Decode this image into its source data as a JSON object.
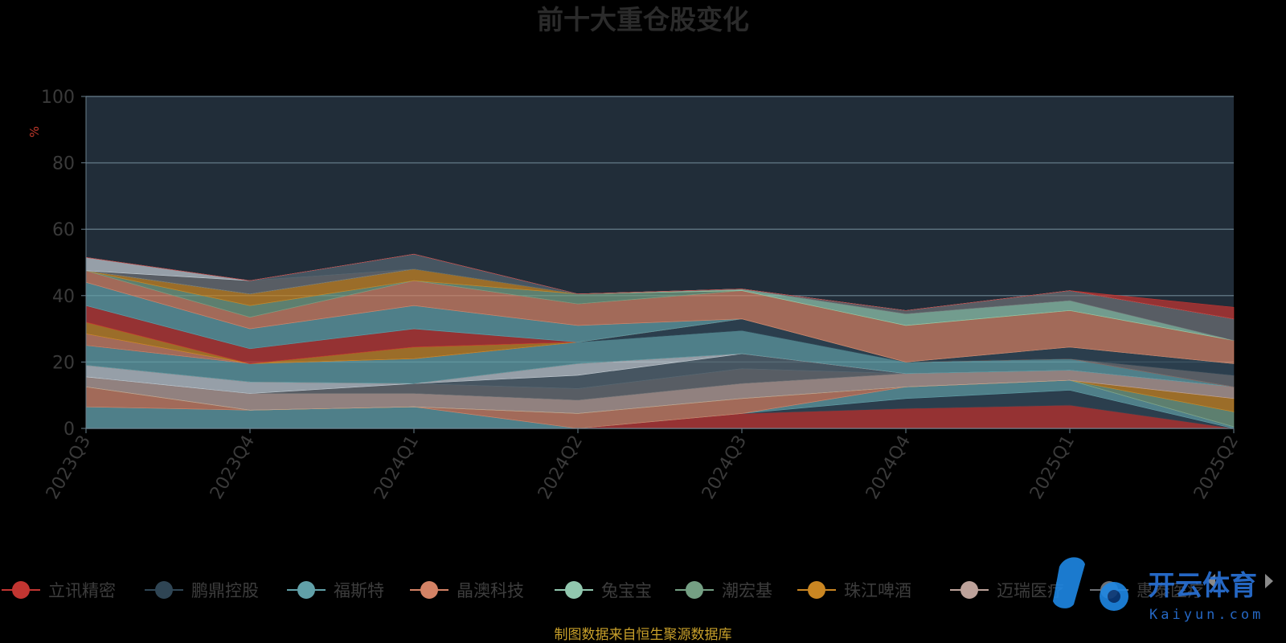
{
  "chart_data": {
    "type": "area",
    "title": "前十大重仓股变化",
    "ylabel": "%",
    "ylim": [
      0,
      100
    ],
    "yticks": [
      "0",
      "20",
      "40",
      "60",
      "80",
      "100"
    ],
    "categories": [
      "2023Q3",
      "2023Q4",
      "2024Q1",
      "2024Q2",
      "2024Q3",
      "2024Q4",
      "2025Q1",
      "2025Q2"
    ],
    "grid": true,
    "legend_position": "bottom",
    "series": [
      {
        "name": "立讯精密",
        "color": "#c23531",
        "values": [
          0,
          0,
          0,
          0,
          4.5,
          6,
          7,
          0
        ]
      },
      {
        "name": "鹏鼎控股",
        "color": "#2f4554",
        "values": [
          0,
          0,
          0,
          0,
          0,
          3,
          4.5,
          0
        ]
      },
      {
        "name": "福斯特",
        "color": "#61a0a8",
        "values": [
          6.5,
          5.5,
          6.5,
          0,
          0,
          3.5,
          3,
          0.5
        ]
      },
      {
        "name": "晶澳科技",
        "color": "#d48265",
        "values": [
          6,
          0,
          0,
          4.5,
          4.5,
          0,
          0,
          0
        ]
      },
      {
        "name": "兔宝宝",
        "color": "#91c7ae",
        "values": [
          0,
          0,
          0,
          0,
          0,
          0,
          0,
          0
        ]
      },
      {
        "name": "潮宏基",
        "color": "#749f83",
        "values": [
          0,
          0,
          0,
          0,
          0,
          0,
          0,
          4.5
        ]
      },
      {
        "name": "珠江啤酒",
        "color": "#ca8622",
        "values": [
          0,
          0,
          0,
          0,
          0,
          0,
          0,
          4
        ]
      },
      {
        "name": "迈瑞医疗",
        "color": "#bda29a",
        "values": [
          3,
          5,
          4,
          4,
          4.5,
          4,
          3,
          3.5
        ]
      },
      {
        "name": "惠泰医疗",
        "color": "#6e7074",
        "values": [
          0,
          0,
          3,
          3.5,
          4.5,
          0,
          0,
          0
        ]
      },
      {
        "name": "",
        "color": "#546570",
        "values": [
          0,
          0,
          0,
          4,
          4.5,
          0,
          0,
          0
        ]
      },
      {
        "name": "",
        "color": "#c4ccd3",
        "values": [
          3.5,
          3.5,
          0,
          3.5,
          0,
          0,
          0,
          0
        ]
      },
      {
        "name": "",
        "color": "#c23531",
        "values": [
          0,
          0,
          0,
          0,
          0,
          0,
          0,
          0
        ]
      },
      {
        "name": "",
        "color": "#61a0a8",
        "values": [
          6,
          5.5,
          7.5,
          6.5,
          7,
          3.5,
          3.5,
          0
        ]
      },
      {
        "name": "",
        "color": "#2f4554",
        "values": [
          0,
          0,
          0,
          0,
          3.5,
          0,
          0,
          0
        ]
      },
      {
        "name": "",
        "color": "#d48265",
        "values": [
          3.5,
          0,
          0,
          0,
          0,
          0,
          0,
          0
        ]
      },
      {
        "name": "",
        "color": "#ca8622",
        "values": [
          3.5,
          0,
          3.5,
          0,
          0,
          0,
          0,
          0
        ]
      },
      {
        "name": "",
        "color": "#c23531",
        "values": [
          5,
          4.5,
          5.5,
          0,
          0,
          0,
          0,
          0
        ]
      },
      {
        "name": "",
        "color": "#6e7074",
        "values": [
          0,
          0,
          0,
          0,
          0,
          0,
          0,
          3.5
        ]
      },
      {
        "name": "",
        "color": "#2f4554",
        "values": [
          0,
          0,
          0,
          0,
          0,
          0,
          3.5,
          3.5
        ]
      },
      {
        "name": "",
        "color": "#61a0a8",
        "values": [
          7,
          6,
          7,
          5,
          0,
          0,
          0,
          0
        ]
      },
      {
        "name": "",
        "color": "#d48265",
        "values": [
          3.5,
          3.5,
          7.5,
          6.5,
          8.5,
          11,
          11,
          7
        ]
      },
      {
        "name": "",
        "color": "#749f83",
        "values": [
          0,
          3.5,
          0,
          3,
          0,
          0,
          0,
          0
        ]
      },
      {
        "name": "",
        "color": "#ca8622",
        "values": [
          0,
          3.5,
          3.5,
          0,
          0,
          0,
          0,
          0
        ]
      },
      {
        "name": "",
        "color": "#91c7ae",
        "values": [
          0,
          0,
          0,
          0,
          0.5,
          3.5,
          3,
          0
        ]
      },
      {
        "name": "",
        "color": "#6e7074",
        "values": [
          0,
          4,
          0,
          0,
          0,
          1,
          3,
          6.5
        ]
      },
      {
        "name": "",
        "color": "#546570",
        "values": [
          0,
          0,
          4.5,
          0,
          0,
          0,
          0,
          0
        ]
      },
      {
        "name": "",
        "color": "#c4ccd3",
        "values": [
          4,
          0,
          0,
          0,
          0,
          0,
          0,
          0
        ]
      },
      {
        "name": "",
        "color": "#c23531",
        "values": [
          0,
          0,
          0,
          0,
          0,
          0,
          0,
          3.5
        ]
      }
    ]
  },
  "legend_items": [
    {
      "label": "立讯精密",
      "color": "#c23531"
    },
    {
      "label": "鹏鼎控股",
      "color": "#2f4554"
    },
    {
      "label": "福斯特",
      "color": "#61a0a8"
    },
    {
      "label": "晶澳科技",
      "color": "#d48265"
    },
    {
      "label": "兔宝宝",
      "color": "#91c7ae"
    },
    {
      "label": "潮宏基",
      "color": "#749f83"
    },
    {
      "label": "珠江啤酒",
      "color": "#ca8622"
    },
    {
      "label": "迈瑞医疗",
      "color": "#bda29a"
    },
    {
      "label": "惠泰医疗",
      "color": "#6e7074"
    }
  ],
  "source_text": "制图数据来自恒生聚源数据库",
  "watermark": {
    "brand": "开云体育",
    "sub": "Kaiyun.com"
  },
  "colors": {
    "plot_bg": "#212d39",
    "grid": "#5a6f7c",
    "axis": "#6a7f8c"
  }
}
